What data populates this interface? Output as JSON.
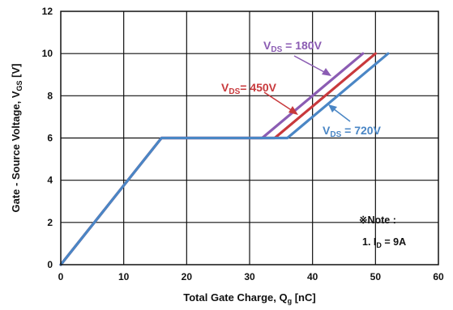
{
  "chart_data": {
    "type": "line",
    "xlabel": "Total Gate Charge, Q",
    "xlabel_sub": "g",
    "xlabel_unit": " [nC]",
    "ylabel": "Gate - Source Voltage, V",
    "ylabel_sub": "GS",
    "ylabel_unit": " [V]",
    "xlim": [
      0,
      60
    ],
    "ylim": [
      0,
      12
    ],
    "xticks": [
      "0",
      "10",
      "20",
      "30",
      "40",
      "50",
      "60"
    ],
    "yticks": [
      "0",
      "2",
      "4",
      "6",
      "8",
      "10",
      "12"
    ],
    "grid": true,
    "series": [
      {
        "name_main": "V",
        "name_sub": "DS",
        "name_rest": " =  180V",
        "color": "#8b5cb3",
        "x": [
          0,
          16,
          32,
          48
        ],
        "y": [
          0,
          6,
          6,
          10
        ]
      },
      {
        "name_main": "V",
        "name_sub": "DS",
        "name_rest": "=  450V",
        "color": "#c8393c",
        "x": [
          0,
          16,
          34,
          50
        ],
        "y": [
          0,
          6,
          6,
          10
        ]
      },
      {
        "name_main": "V",
        "name_sub": "DS",
        "name_rest": " =  720V",
        "color": "#4a86c5",
        "x": [
          0,
          16,
          36,
          52
        ],
        "y": [
          0,
          6,
          6,
          10
        ]
      }
    ],
    "note": {
      "title": "※Note :",
      "line_main": "1. I",
      "line_sub": "D",
      "line_rest": " = 9A"
    }
  }
}
